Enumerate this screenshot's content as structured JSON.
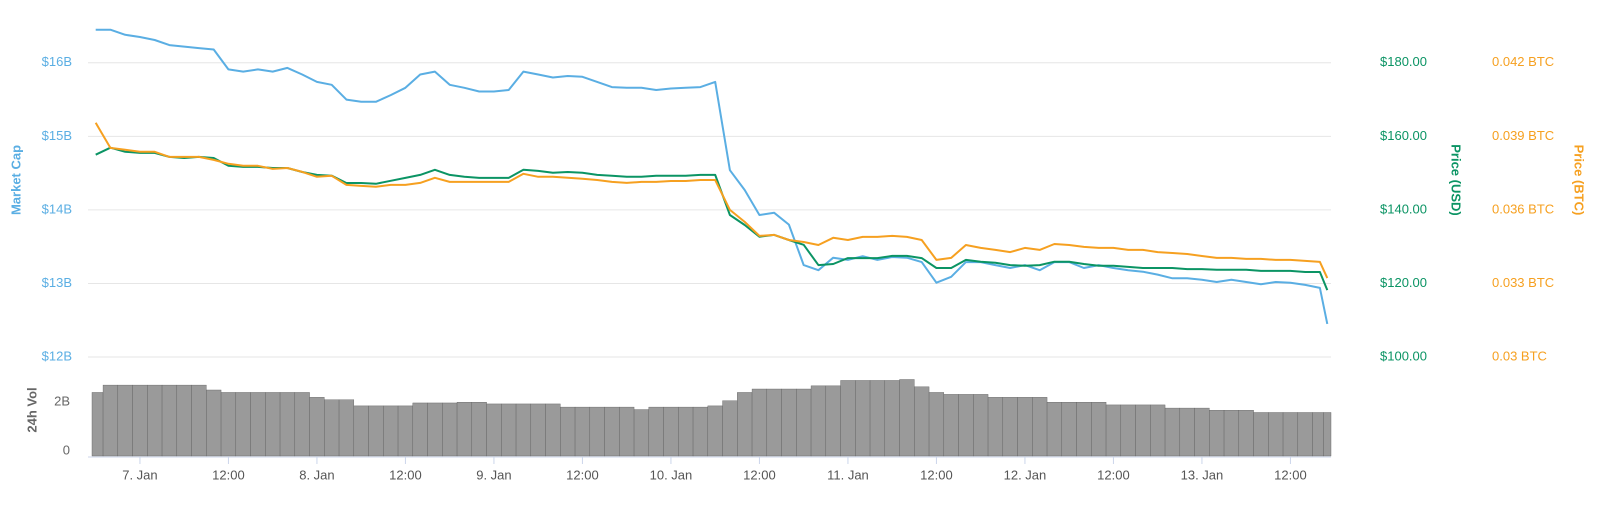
{
  "chart_data": [
    {
      "type": "line",
      "x": [
        18,
        20,
        22,
        24,
        26,
        28,
        30,
        32,
        34,
        36,
        38,
        40,
        42,
        44,
        46,
        48,
        50,
        52,
        54,
        56,
        58,
        60,
        62,
        64,
        66,
        68,
        70,
        72,
        74,
        76,
        78,
        80,
        82,
        84,
        86,
        88,
        90,
        92,
        94,
        96,
        98,
        100,
        102,
        104,
        106,
        108,
        110,
        112,
        114,
        116,
        118,
        120,
        122,
        124,
        126,
        128,
        130,
        132,
        134,
        136,
        138,
        140,
        142,
        144,
        146,
        148,
        150,
        152,
        154,
        156,
        158,
        160,
        162,
        164,
        166,
        168,
        170,
        172,
        174,
        176,
        178,
        180,
        182,
        184,
        185
      ],
      "xlim": [
        17.5,
        185.5
      ],
      "ylim": [
        12,
        16.5
      ],
      "yticks": [
        {
          "value": 12,
          "label": "$12B"
        },
        {
          "value": 13,
          "label": "$13B"
        },
        {
          "value": 14,
          "label": "$14B"
        },
        {
          "value": 15,
          "label": "$15B"
        },
        {
          "value": 16,
          "label": "$16B"
        }
      ],
      "y2lim": [
        100,
        190
      ],
      "y2ticks": [
        {
          "value": 100,
          "label": "$100.00"
        },
        {
          "value": 120,
          "label": "$120.00"
        },
        {
          "value": 140,
          "label": "$140.00"
        },
        {
          "value": 160,
          "label": "$160.00"
        },
        {
          "value": 180,
          "label": "$180.00"
        }
      ],
      "y3lim": [
        0.03,
        0.0435
      ],
      "y3ticks": [
        {
          "value": 0.03,
          "label": "0.03 BTC"
        },
        {
          "value": 0.033,
          "label": "0.033 BTC"
        },
        {
          "value": 0.036,
          "label": "0.036 BTC"
        },
        {
          "value": 0.039,
          "label": "0.039 BTC"
        },
        {
          "value": 0.042,
          "label": "0.042 BTC"
        }
      ],
      "grid": true,
      "series": [
        {
          "name": "Market Cap",
          "color": "#5aaee3",
          "axis": "y",
          "values": [
            16.45,
            16.45,
            16.38,
            16.35,
            16.31,
            16.24,
            16.22,
            16.2,
            16.18,
            15.91,
            15.88,
            15.91,
            15.88,
            15.93,
            15.84,
            15.74,
            15.7,
            15.5,
            15.47,
            15.47,
            15.56,
            15.66,
            15.84,
            15.88,
            15.7,
            15.66,
            15.61,
            15.61,
            15.63,
            15.88,
            15.84,
            15.8,
            15.82,
            15.81,
            15.74,
            15.67,
            15.66,
            15.66,
            15.63,
            15.65,
            15.66,
            15.67,
            15.74,
            14.54,
            14.27,
            13.93,
            13.96,
            13.8,
            13.25,
            13.18,
            13.35,
            13.32,
            13.37,
            13.32,
            13.36,
            13.35,
            13.29,
            13.01,
            13.09,
            13.29,
            13.29,
            13.25,
            13.21,
            13.25,
            13.18,
            13.29,
            13.29,
            13.21,
            13.25,
            13.21,
            13.18,
            13.16,
            13.12,
            13.07,
            13.07,
            13.05,
            13.02,
            13.05,
            13.02,
            12.99,
            13.02,
            13.01,
            12.98,
            12.94,
            12.45
          ]
        },
        {
          "name": "Price (USD)",
          "color": "#0b9464",
          "axis": "y2",
          "values": [
            155,
            156.9,
            155.8,
            155.5,
            155.5,
            154.4,
            154.1,
            154.4,
            154.1,
            152,
            151.7,
            151.7,
            151.4,
            151.4,
            150.3,
            149.5,
            149.3,
            147.3,
            147.3,
            147.1,
            147.9,
            148.7,
            149.5,
            150.9,
            149.5,
            149,
            148.7,
            148.7,
            148.7,
            150.9,
            150.6,
            150.1,
            150.3,
            150.1,
            149.5,
            149.3,
            149,
            149,
            149.3,
            149.3,
            149.3,
            149.5,
            149.5,
            138.6,
            135.9,
            132.7,
            133.2,
            131.8,
            130.5,
            125,
            125.3,
            126.9,
            126.9,
            126.9,
            127.5,
            127.5,
            126.9,
            124.2,
            124.2,
            126.4,
            125.9,
            125.6,
            125,
            124.8,
            125,
            125.9,
            125.9,
            125.3,
            124.8,
            124.8,
            124.5,
            124.2,
            124.2,
            124.2,
            123.9,
            123.9,
            123.7,
            123.7,
            123.7,
            123.4,
            123.4,
            123.4,
            123.1,
            123.1,
            118.2
          ]
        },
        {
          "name": "Price (BTC)",
          "color": "#f6a020",
          "axis": "y3",
          "values": [
            0.03955,
            0.03853,
            0.03845,
            0.03837,
            0.03837,
            0.03816,
            0.03816,
            0.03816,
            0.03804,
            0.03788,
            0.0378,
            0.0378,
            0.03767,
            0.03771,
            0.03755,
            0.03735,
            0.03739,
            0.03702,
            0.03698,
            0.03694,
            0.03702,
            0.03702,
            0.0371,
            0.03731,
            0.03714,
            0.03714,
            0.03714,
            0.03714,
            0.03714,
            0.03747,
            0.03735,
            0.03735,
            0.03731,
            0.03727,
            0.03722,
            0.03714,
            0.0371,
            0.03714,
            0.03714,
            0.03718,
            0.03718,
            0.03722,
            0.03722,
            0.036,
            0.03551,
            0.03494,
            0.03498,
            0.03477,
            0.03469,
            0.03457,
            0.03486,
            0.03477,
            0.0349,
            0.0349,
            0.03494,
            0.0349,
            0.03477,
            0.03396,
            0.03404,
            0.03457,
            0.03445,
            0.03437,
            0.03428,
            0.03445,
            0.03437,
            0.03461,
            0.03457,
            0.03449,
            0.03445,
            0.03445,
            0.03437,
            0.03437,
            0.03428,
            0.03424,
            0.0342,
            0.03412,
            0.03404,
            0.03404,
            0.034,
            0.034,
            0.03396,
            0.03396,
            0.03392,
            0.03388,
            0.03322
          ]
        }
      ]
    },
    {
      "type": "bar",
      "ylabel": "24h Vol",
      "x": [
        18,
        20,
        22,
        24,
        26,
        28,
        30,
        32,
        34,
        36,
        38,
        40,
        42,
        44,
        46,
        48,
        50,
        52,
        54,
        56,
        58,
        60,
        62,
        64,
        66,
        68,
        70,
        72,
        74,
        76,
        78,
        80,
        82,
        84,
        86,
        88,
        90,
        92,
        94,
        96,
        98,
        100,
        102,
        104,
        106,
        108,
        110,
        112,
        114,
        116,
        118,
        120,
        122,
        124,
        126,
        128,
        130,
        132,
        134,
        136,
        138,
        140,
        142,
        144,
        146,
        148,
        150,
        152,
        154,
        156,
        158,
        160,
        162,
        164,
        166,
        168,
        170,
        172,
        174,
        176,
        178,
        180,
        182,
        184,
        185
      ],
      "xlim": [
        17.5,
        185.5
      ],
      "xticks": [
        {
          "value": 24,
          "label": "7. Jan"
        },
        {
          "value": 36,
          "label": "12:00"
        },
        {
          "value": 48,
          "label": "8. Jan"
        },
        {
          "value": 60,
          "label": "12:00"
        },
        {
          "value": 72,
          "label": "9. Jan"
        },
        {
          "value": 84,
          "label": "12:00"
        },
        {
          "value": 96,
          "label": "10. Jan"
        },
        {
          "value": 108,
          "label": "12:00"
        },
        {
          "value": 120,
          "label": "11. Jan"
        },
        {
          "value": 132,
          "label": "12:00"
        },
        {
          "value": 144,
          "label": "12. Jan"
        },
        {
          "value": 156,
          "label": "12:00"
        },
        {
          "value": 168,
          "label": "13. Jan"
        },
        {
          "value": 180,
          "label": "12:00"
        }
      ],
      "ylim": [
        0,
        3.6
      ],
      "yticks": [
        0,
        {
          "value": 2,
          "label": "2B"
        }
      ],
      "color": "#9a9a9a",
      "values": [
        2.6,
        2.9,
        2.9,
        2.9,
        2.9,
        2.9,
        2.9,
        2.9,
        2.7,
        2.6,
        2.6,
        2.6,
        2.6,
        2.6,
        2.6,
        2.4,
        2.3,
        2.3,
        2.05,
        2.05,
        2.05,
        2.05,
        2.17,
        2.17,
        2.17,
        2.2,
        2.2,
        2.13,
        2.13,
        2.13,
        2.13,
        2.13,
        2.0,
        2.0,
        2.0,
        2.0,
        2.0,
        1.9,
        2.0,
        2.0,
        2.0,
        2.0,
        2.05,
        2.26,
        2.6,
        2.74,
        2.74,
        2.74,
        2.74,
        2.87,
        2.87,
        3.09,
        3.09,
        3.09,
        3.09,
        3.13,
        2.83,
        2.6,
        2.52,
        2.52,
        2.52,
        2.4,
        2.4,
        2.4,
        2.4,
        2.2,
        2.2,
        2.2,
        2.2,
        2.09,
        2.09,
        2.09,
        2.09,
        1.96,
        1.96,
        1.96,
        1.87,
        1.87,
        1.87,
        1.78,
        1.78,
        1.78,
        1.78,
        1.78,
        1.78
      ]
    }
  ]
}
